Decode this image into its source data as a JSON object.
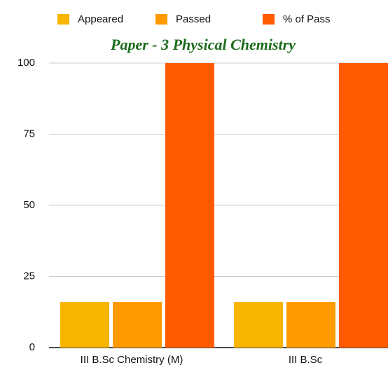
{
  "chart_data": {
    "type": "bar",
    "title": "Paper - 3  Physical Chemistry",
    "categories": [
      "III B.Sc Chemistry (M)",
      "III B.Sc"
    ],
    "series": [
      {
        "name": "Appeared",
        "color": "#f7b500",
        "values": [
          16,
          16
        ]
      },
      {
        "name": "Passed",
        "color": "#ff9a00",
        "values": [
          16,
          16
        ]
      },
      {
        "name": "% of Pass",
        "color": "#ff5a00",
        "values": [
          100,
          100
        ]
      }
    ],
    "ylim": [
      0,
      100
    ],
    "yticks": [
      0,
      25,
      50,
      75,
      100
    ],
    "grid": true,
    "legend": "top"
  }
}
